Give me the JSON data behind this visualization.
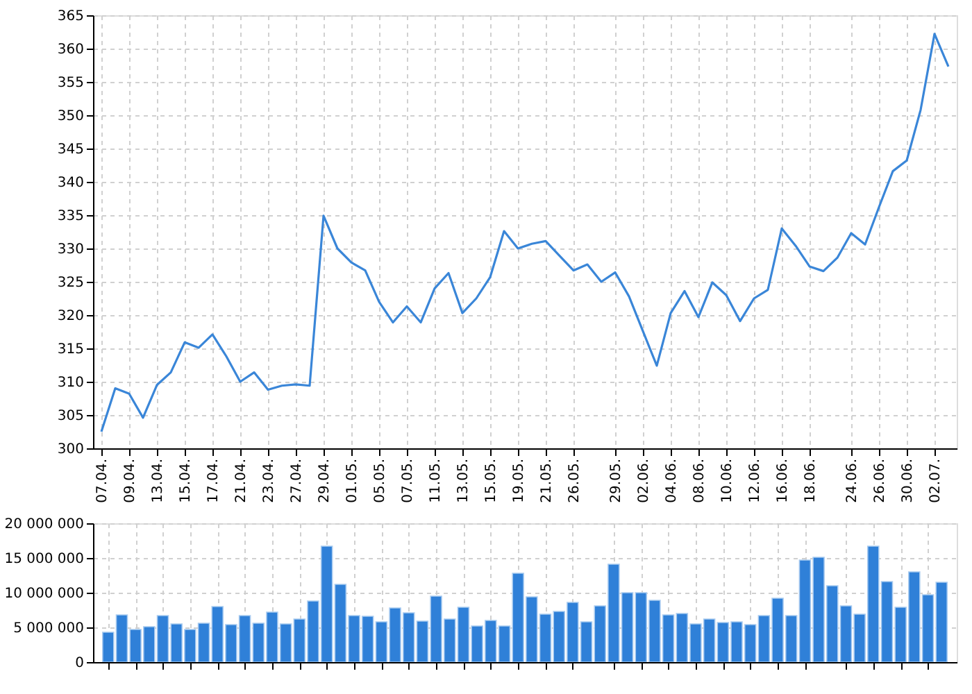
{
  "chart_data": [
    {
      "type": "line",
      "categories": [
        "07.04.",
        null,
        "09.04.",
        null,
        "13.04.",
        null,
        "15.04.",
        null,
        "17.04.",
        null,
        "21.04.",
        null,
        "23.04.",
        null,
        "27.04.",
        null,
        "29.04.",
        null,
        "01.05.",
        null,
        "05.05.",
        null,
        "07.05.",
        null,
        "11.05.",
        null,
        "13.05.",
        null,
        "15.05.",
        null,
        "19.05.",
        null,
        "21.05.",
        null,
        "26.05.",
        null,
        null,
        "29.05.",
        null,
        "02.06.",
        null,
        "04.06.",
        null,
        "08.06.",
        null,
        "10.06.",
        null,
        "12.06.",
        null,
        "16.06.",
        null,
        "18.06.",
        null,
        null,
        "24.06.",
        null,
        "26.06.",
        null,
        "30.06.",
        null,
        "02.07.",
        null
      ],
      "values": [
        302.5,
        309.0,
        308.2,
        304.6,
        309.5,
        311.4,
        315.9,
        315.1,
        317.1,
        313.8,
        310.0,
        311.4,
        308.8,
        309.4,
        309.6,
        309.4,
        334.9,
        330.0,
        327.9,
        326.7,
        322.0,
        318.9,
        321.3,
        318.9,
        324.0,
        326.3,
        320.3,
        322.5,
        325.7,
        332.6,
        330.0,
        330.7,
        331.1,
        328.9,
        326.7,
        327.6,
        325.0,
        326.4,
        322.8,
        317.6,
        312.4,
        320.3,
        323.6,
        319.7,
        324.9,
        323.0,
        319.1,
        322.5,
        323.8,
        333.0,
        330.4,
        327.3,
        326.6,
        328.6,
        332.3,
        330.6,
        336.2,
        341.6,
        343.2,
        350.8,
        362.2,
        357.3
      ],
      "color": "#3a86d8",
      "ylim": [
        300,
        365
      ],
      "yticks": [
        300,
        305,
        310,
        315,
        320,
        325,
        330,
        335,
        340,
        345,
        350,
        355,
        360,
        365
      ],
      "grid": true,
      "marker": "none",
      "line_style": "solid"
    },
    {
      "type": "bar",
      "categories": [
        "07.04.",
        null,
        "09.04.",
        null,
        "13.04.",
        null,
        "15.04.",
        null,
        "17.04.",
        null,
        "21.04.",
        null,
        "23.04.",
        null,
        "27.04.",
        null,
        "29.04.",
        null,
        "01.05.",
        null,
        "05.05.",
        null,
        "07.05.",
        null,
        "11.05.",
        null,
        "13.05.",
        null,
        "15.05.",
        null,
        "19.05.",
        null,
        "21.05.",
        null,
        "26.05.",
        null,
        null,
        "29.05.",
        null,
        "02.06.",
        null,
        "04.06.",
        null,
        "08.06.",
        null,
        "10.06.",
        null,
        "12.06.",
        null,
        "16.06.",
        null,
        "18.06.",
        null,
        null,
        "24.06.",
        null,
        "26.06.",
        null,
        "30.06.",
        null,
        "02.07.",
        null
      ],
      "values": [
        4300000,
        6800000,
        4700000,
        5100000,
        6700000,
        5500000,
        4700000,
        5600000,
        8000000,
        5400000,
        6700000,
        5600000,
        7200000,
        5500000,
        6200000,
        8800000,
        16700000,
        11200000,
        6700000,
        6600000,
        5800000,
        7800000,
        7100000,
        5900000,
        9500000,
        6200000,
        7900000,
        5200000,
        6000000,
        5200000,
        12800000,
        9400000,
        6900000,
        7300000,
        8600000,
        5800000,
        8100000,
        14100000,
        10000000,
        10000000,
        8900000,
        6800000,
        7000000,
        5500000,
        6200000,
        5700000,
        5800000,
        5400000,
        6700000,
        9200000,
        6700000,
        14700000,
        15100000,
        11000000,
        8100000,
        6900000,
        16700000,
        11600000,
        7900000,
        13000000,
        9700000,
        11500000
      ],
      "color": "#2f80d8",
      "ylim": [
        0,
        20000000
      ],
      "yticks": [
        {
          "value": 0,
          "label": "0"
        },
        {
          "value": 5000000,
          "label": "5 000 000"
        },
        {
          "value": 10000000,
          "label": "10 000 000"
        },
        {
          "value": 15000000,
          "label": "15 000 000"
        },
        {
          "value": 20000000,
          "label": "20 000 000"
        }
      ],
      "grid": true,
      "tick_labels": "y"
    }
  ]
}
